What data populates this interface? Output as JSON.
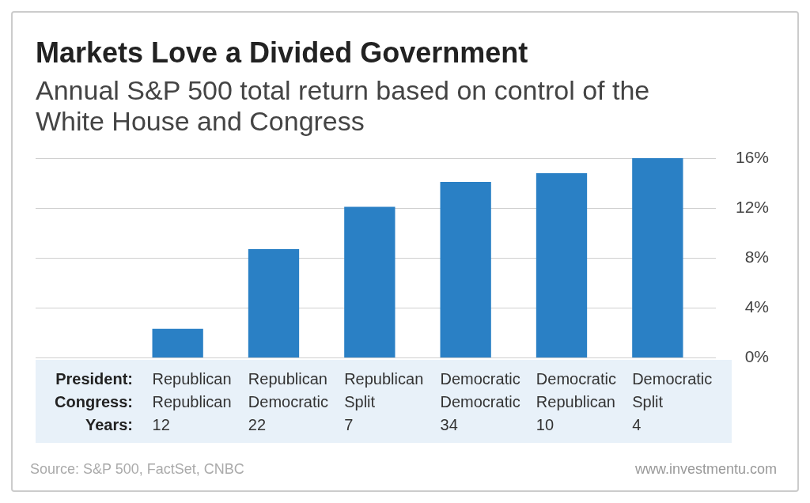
{
  "chart_data": {
    "type": "bar",
    "title": "Markets Love a Divided Government",
    "subtitle": "Annual S&P 500 total return based on control of the White House and Congress",
    "category_rows": [
      {
        "label": "President:",
        "values": [
          "Republican",
          "Republican",
          "Republican",
          "Democratic",
          "Democratic",
          "Democratic"
        ]
      },
      {
        "label": "Congress:",
        "values": [
          "Republican",
          "Democratic",
          "Split",
          "Democratic",
          "Republican",
          "Split"
        ]
      },
      {
        "label": "Years:",
        "values": [
          12,
          22,
          7,
          34,
          10,
          4
        ]
      }
    ],
    "values": [
      2.3,
      8.7,
      12.1,
      14.1,
      14.8,
      16.0
    ],
    "color": "#2a80c5",
    "ylim": [
      0,
      16
    ],
    "yticks": [
      {
        "value": 0,
        "label": "0%"
      },
      {
        "value": 4,
        "label": "4%"
      },
      {
        "value": 8,
        "label": "8%"
      },
      {
        "value": 12,
        "label": "12%"
      },
      {
        "value": 16,
        "label": "16%"
      }
    ],
    "grid": true,
    "source": "Source: S&P 500, FactSet, CNBC",
    "website": "www.investmentu.com"
  }
}
